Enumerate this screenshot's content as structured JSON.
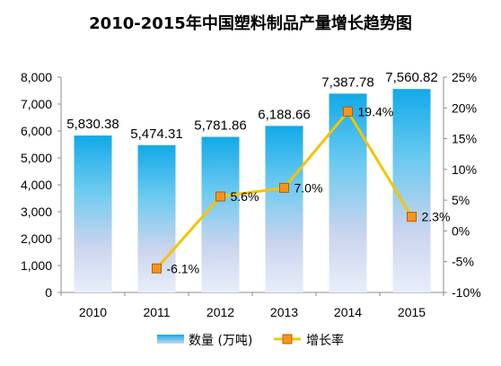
{
  "chart_data": {
    "type": "bar",
    "title": "2010-2015年中国塑料制品产量增长趋势图",
    "categories": [
      "2010",
      "2011",
      "2012",
      "2013",
      "2014",
      "2015"
    ],
    "series": [
      {
        "name": "数量 (万吨)",
        "type": "bar",
        "axis": "left",
        "values": [
          5830.38,
          5474.31,
          5781.86,
          6188.66,
          7387.78,
          7560.82
        ],
        "labels": [
          "5,830.38",
          "5,474.31",
          "5,781.86",
          "6,188.66",
          "7,387.78",
          "7,560.82"
        ],
        "color": "#1fb0ea"
      },
      {
        "name": "增长率",
        "type": "line",
        "axis": "right",
        "values": [
          null,
          -6.1,
          5.6,
          7.0,
          19.4,
          2.3
        ],
        "labels": [
          "",
          "-6.1%",
          "5.6%",
          "7.0%",
          "19.4%",
          "2.3%"
        ],
        "color": "#f5c400",
        "marker_color": "#f7941d"
      }
    ],
    "ylim_left": [
      0,
      8000
    ],
    "yticks_left": [
      "0",
      "1,000",
      "2,000",
      "3,000",
      "4,000",
      "5,000",
      "6,000",
      "7,000",
      "8,000"
    ],
    "ylim_right": [
      -10,
      25
    ],
    "yticks_right": [
      "-10%",
      "-5%",
      "0%",
      "5%",
      "10%",
      "15%",
      "20%",
      "25%"
    ],
    "grid": false,
    "legend": "bottom"
  }
}
